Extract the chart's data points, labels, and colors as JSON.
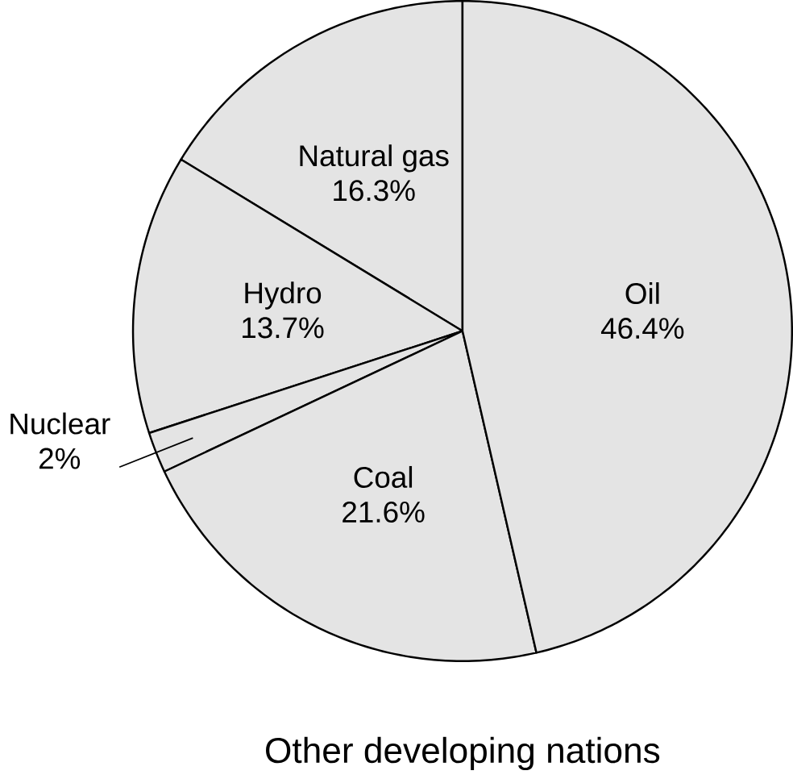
{
  "chart_data": {
    "type": "pie",
    "title": "Other developing nations",
    "categories": [
      "Natural gas",
      "Hydro",
      "Nuclear",
      "Coal",
      "Oil"
    ],
    "values": [
      16.3,
      13.7,
      2,
      21.6,
      46.4
    ],
    "value_labels": [
      "16.3%",
      "13.7%",
      "2%",
      "21.6%",
      "46.4%"
    ],
    "colors": [
      "#e4e4e4",
      "#e4e4e4",
      "#e4e4e4",
      "#e4e4e4",
      "#e4e4e4"
    ]
  }
}
